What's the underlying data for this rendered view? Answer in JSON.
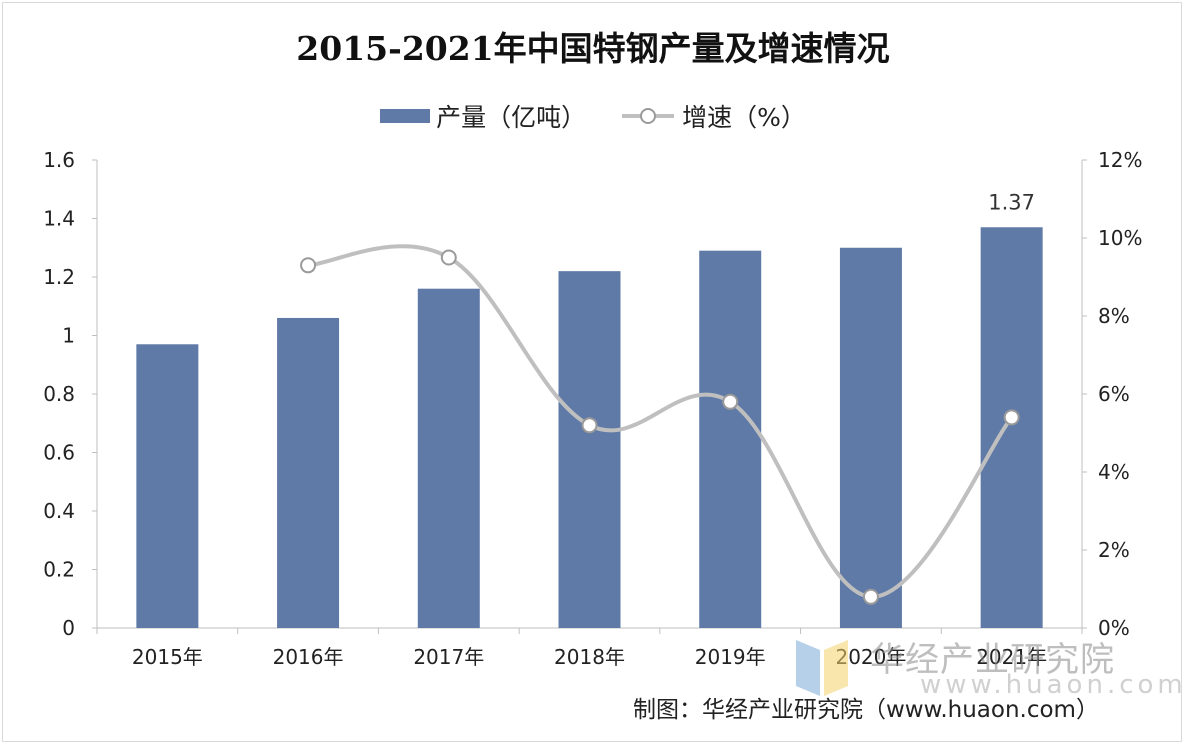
{
  "chart_data": {
    "type": "bar",
    "title": "2015-2021年中国特钢产量及增速情况",
    "categories": [
      "2015年",
      "2016年",
      "2017年",
      "2018年",
      "2019年",
      "2020年",
      "2021年"
    ],
    "series": [
      {
        "name": "产量（亿吨）",
        "type": "bar",
        "axis": "left",
        "color": "#5f7aa6",
        "values": [
          0.97,
          1.06,
          1.16,
          1.22,
          1.29,
          1.3,
          1.37
        ]
      },
      {
        "name": "增速（%）",
        "type": "line",
        "axis": "right",
        "color": "#bfbfbf",
        "values": [
          null,
          9.3,
          9.5,
          5.2,
          5.8,
          0.8,
          5.4
        ]
      }
    ],
    "data_labels": [
      {
        "category": "2021年",
        "series": "产量（亿吨）",
        "text": "1.37"
      }
    ],
    "y_left": {
      "min": 0,
      "max": 1.6,
      "ticks": [
        "0",
        "0.2",
        "0.4",
        "0.6",
        "0.8",
        "1",
        "1.2",
        "1.4",
        "1.6"
      ]
    },
    "y_right": {
      "min": 0,
      "max": 12,
      "ticks": [
        "0%",
        "2%",
        "4%",
        "6%",
        "8%",
        "10%",
        "12%"
      ]
    },
    "legend_position": "top",
    "grid": false
  },
  "legend": {
    "bar_label": "产量（亿吨）",
    "line_label": "增速（%）"
  },
  "source": "制图：华经产业研究院（www.huaon.com）",
  "watermark": {
    "text": "华经产业研究院",
    "url": "www.huaon.com"
  }
}
